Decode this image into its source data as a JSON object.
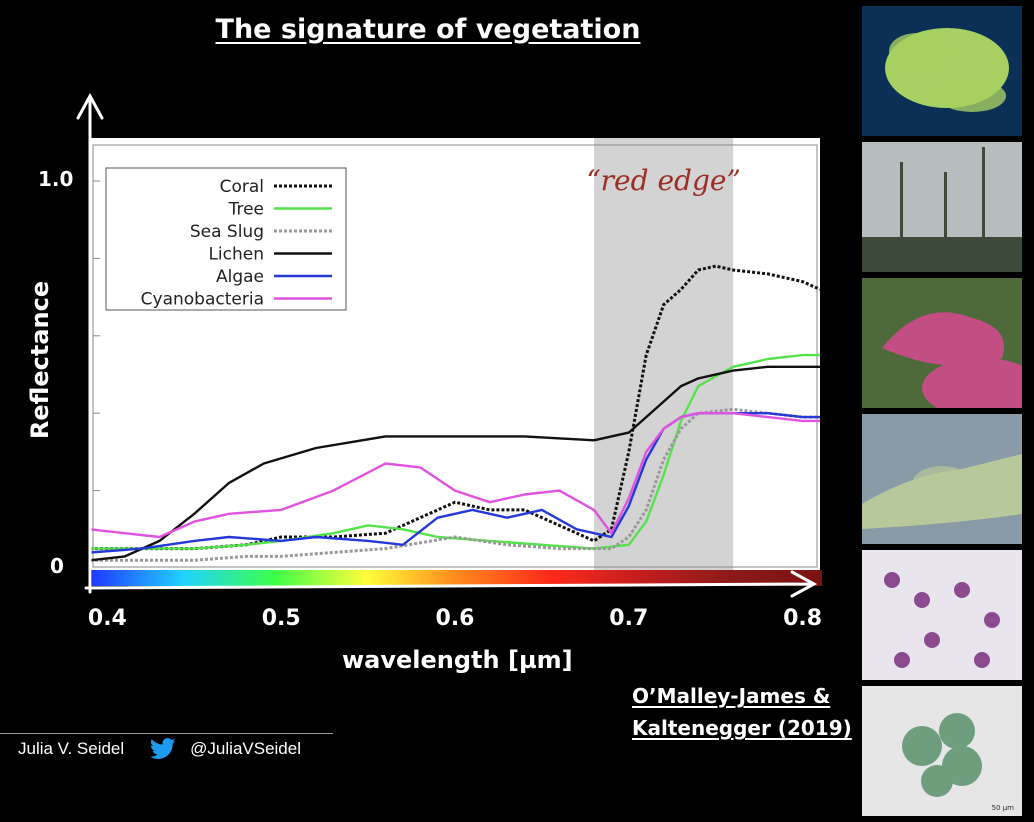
{
  "slide": {
    "title": "The signature of vegetation",
    "citation_line1": "O’Malley-James &",
    "citation_line2": "Kaltenegger (2019)"
  },
  "footer": {
    "author": "Julia V. Seidel",
    "twitter_handle": "@JuliaVSeidel"
  },
  "photos": [
    {
      "name": "coral",
      "colors": [
        "#0b2f55",
        "#a8cf62"
      ]
    },
    {
      "name": "tree",
      "colors": [
        "#b7bcbf",
        "#3d4a3a"
      ]
    },
    {
      "name": "sea-slug",
      "colors": [
        "#4f6a3a",
        "#c24e84"
      ]
    },
    {
      "name": "lichen",
      "colors": [
        "#8a9aa6",
        "#b7c89a"
      ]
    },
    {
      "name": "algae",
      "colors": [
        "#e9e5ef",
        "#8c4a8f"
      ]
    },
    {
      "name": "cyanobacteria",
      "colors": [
        "#e6e6e6",
        "#6f9e7e"
      ]
    }
  ],
  "photo_scale_label": "50 µm",
  "chart_data": {
    "type": "line",
    "title": "",
    "xlabel": "wavelength [µm]",
    "ylabel": "Reflectance",
    "xlim": [
      0.39,
      0.81
    ],
    "ylim": [
      0,
      1.1
    ],
    "xticks": [
      "0.4",
      "0.5",
      "0.6",
      "0.7",
      "0.8"
    ],
    "xtick_values": [
      0.4,
      0.5,
      0.6,
      0.7,
      0.8
    ],
    "yticks": [
      "0",
      "1.0"
    ],
    "ytick_values": [
      0,
      1.0
    ],
    "highlight": {
      "label": "“red edge”",
      "x_range": [
        0.68,
        0.76
      ],
      "color": "#d3d3d3",
      "label_color": "#9b2d25"
    },
    "legend_position": "top-left",
    "spectrum_bar_colors": [
      "#1f39ff",
      "#20d2ff",
      "#3dff48",
      "#ffff3a",
      "#ff8a1c",
      "#ff2a1a",
      "#c41e1e",
      "#8c1a1a",
      "#7a1212"
    ],
    "series": [
      {
        "name": "Coral",
        "color": "#111111",
        "style": "dotted",
        "x": [
          0.39,
          0.42,
          0.45,
          0.48,
          0.5,
          0.53,
          0.56,
          0.58,
          0.6,
          0.62,
          0.64,
          0.66,
          0.68,
          0.69,
          0.7,
          0.71,
          0.72,
          0.73,
          0.74,
          0.75,
          0.76,
          0.78,
          0.8,
          0.81
        ],
        "y": [
          0.05,
          0.05,
          0.05,
          0.06,
          0.08,
          0.08,
          0.09,
          0.13,
          0.17,
          0.15,
          0.15,
          0.11,
          0.07,
          0.1,
          0.3,
          0.55,
          0.68,
          0.72,
          0.77,
          0.78,
          0.77,
          0.76,
          0.74,
          0.72
        ]
      },
      {
        "name": "Tree",
        "color": "#55e24a",
        "style": "solid",
        "x": [
          0.39,
          0.42,
          0.45,
          0.48,
          0.5,
          0.53,
          0.55,
          0.57,
          0.59,
          0.62,
          0.65,
          0.68,
          0.7,
          0.71,
          0.72,
          0.73,
          0.74,
          0.76,
          0.78,
          0.8,
          0.81
        ],
        "y": [
          0.05,
          0.05,
          0.05,
          0.06,
          0.07,
          0.09,
          0.11,
          0.1,
          0.08,
          0.07,
          0.06,
          0.05,
          0.06,
          0.12,
          0.24,
          0.38,
          0.47,
          0.52,
          0.54,
          0.55,
          0.55
        ]
      },
      {
        "name": "Sea Slug",
        "color": "#999999",
        "style": "dotted",
        "x": [
          0.39,
          0.42,
          0.45,
          0.48,
          0.5,
          0.53,
          0.56,
          0.6,
          0.63,
          0.66,
          0.69,
          0.7,
          0.71,
          0.72,
          0.73,
          0.74,
          0.76,
          0.78,
          0.8,
          0.81
        ],
        "y": [
          0.02,
          0.02,
          0.02,
          0.03,
          0.03,
          0.04,
          0.05,
          0.08,
          0.06,
          0.05,
          0.05,
          0.08,
          0.15,
          0.28,
          0.36,
          0.4,
          0.41,
          0.4,
          0.39,
          0.39
        ]
      },
      {
        "name": "Lichen",
        "color": "#111111",
        "style": "solid",
        "x": [
          0.39,
          0.41,
          0.43,
          0.45,
          0.47,
          0.49,
          0.52,
          0.56,
          0.6,
          0.64,
          0.68,
          0.7,
          0.71,
          0.72,
          0.73,
          0.74,
          0.76,
          0.78,
          0.8,
          0.81
        ],
        "y": [
          0.02,
          0.03,
          0.07,
          0.14,
          0.22,
          0.27,
          0.31,
          0.34,
          0.34,
          0.34,
          0.33,
          0.35,
          0.39,
          0.43,
          0.47,
          0.49,
          0.51,
          0.52,
          0.52,
          0.52
        ]
      },
      {
        "name": "Algae",
        "color": "#2538d8",
        "style": "solid",
        "x": [
          0.39,
          0.42,
          0.45,
          0.47,
          0.5,
          0.52,
          0.55,
          0.57,
          0.59,
          0.61,
          0.63,
          0.65,
          0.67,
          0.69,
          0.7,
          0.71,
          0.72,
          0.73,
          0.74,
          0.76,
          0.78,
          0.8,
          0.81
        ],
        "y": [
          0.04,
          0.05,
          0.07,
          0.08,
          0.07,
          0.08,
          0.07,
          0.06,
          0.13,
          0.15,
          0.13,
          0.15,
          0.1,
          0.08,
          0.16,
          0.28,
          0.36,
          0.39,
          0.4,
          0.4,
          0.4,
          0.39,
          0.39
        ]
      },
      {
        "name": "Cyanobacteria",
        "color": "#e052e0",
        "style": "solid",
        "x": [
          0.39,
          0.41,
          0.43,
          0.45,
          0.47,
          0.5,
          0.53,
          0.56,
          0.58,
          0.6,
          0.62,
          0.64,
          0.66,
          0.68,
          0.69,
          0.7,
          0.71,
          0.72,
          0.73,
          0.74,
          0.76,
          0.78,
          0.8,
          0.81
        ],
        "y": [
          0.1,
          0.09,
          0.08,
          0.12,
          0.14,
          0.15,
          0.2,
          0.27,
          0.26,
          0.2,
          0.17,
          0.19,
          0.2,
          0.15,
          0.09,
          0.18,
          0.3,
          0.36,
          0.39,
          0.4,
          0.4,
          0.39,
          0.38,
          0.38
        ]
      }
    ]
  }
}
